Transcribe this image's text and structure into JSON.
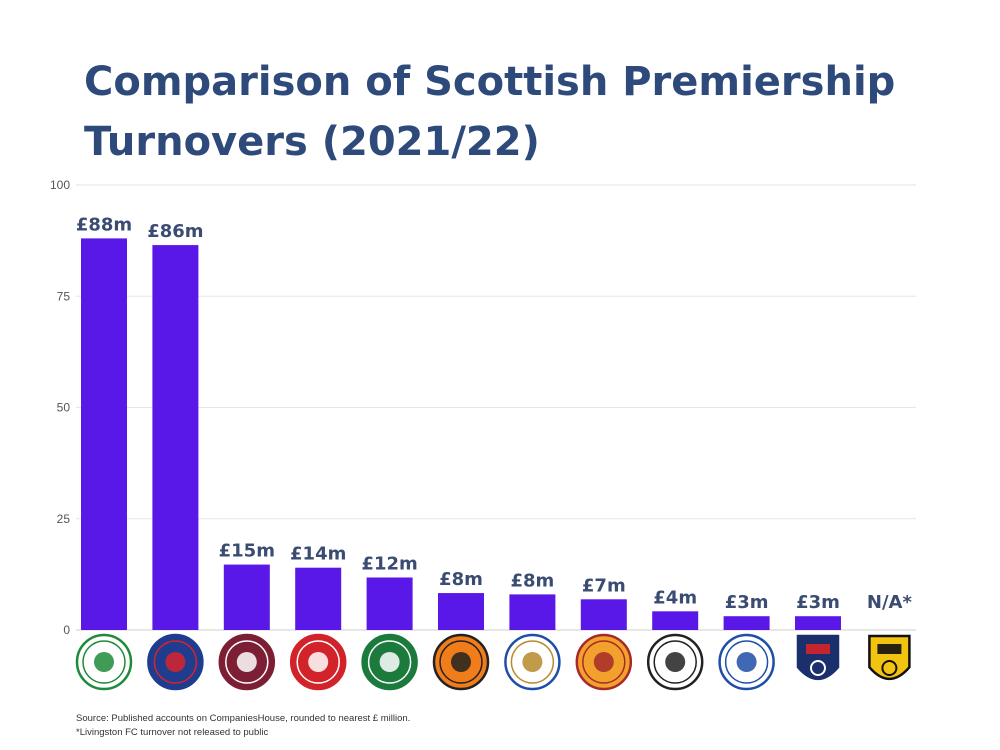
{
  "title_lines": [
    "Comparison of Scottish Premiership",
    "Turnovers (2021/22)"
  ],
  "colors": {
    "bar": "#5a18e8",
    "title": "#2e4a7a",
    "label": "#3a4c72",
    "grid": "#e6e6e6",
    "axis": "#555555"
  },
  "chart_data": {
    "type": "bar",
    "title": "Comparison of Scottish Premiership Turnovers (2021/22)",
    "categories": [
      "Celtic",
      "Rangers",
      "Hearts",
      "Aberdeen",
      "Hibernian",
      "Dundee United",
      "St Johnstone",
      "Motherwell",
      "St Mirren",
      "Kilmarnock",
      "Ross County",
      "Livingston"
    ],
    "values": [
      88,
      86.5,
      14.7,
      14,
      11.8,
      8.3,
      8,
      6.9,
      4.2,
      3.1,
      3.1,
      null
    ],
    "data_labels": [
      "£88m",
      "£86m",
      "£15m",
      "£14m",
      "£12m",
      "£8m",
      "£8m",
      "£7m",
      "£4m",
      "£3m",
      "£3m",
      "N/A*"
    ],
    "xlabel": "",
    "ylabel": "",
    "ylim": [
      0,
      100
    ],
    "yticks": [
      0,
      25,
      50,
      75,
      100
    ],
    "grid": true,
    "legend": "none",
    "x_tick_display": "club crest icons",
    "crests": [
      {
        "name": "celtic-crest-icon",
        "shape": "circle",
        "fill": "#ffffff",
        "stroke": "#1e8a3a",
        "accent": "#1e8a3a"
      },
      {
        "name": "rangers-crest-icon",
        "shape": "circle",
        "fill": "#1f3c8f",
        "stroke": "#1f3c8f",
        "accent": "#d8232a"
      },
      {
        "name": "hearts-crest-icon",
        "shape": "circle",
        "fill": "#7d1f34",
        "stroke": "#7d1f34",
        "accent": "#ffffff"
      },
      {
        "name": "aberdeen-crest-icon",
        "shape": "circle",
        "fill": "#d2232a",
        "stroke": "#d2232a",
        "accent": "#ffffff"
      },
      {
        "name": "hibernian-crest-icon",
        "shape": "circle",
        "fill": "#1b7a3c",
        "stroke": "#1b7a3c",
        "accent": "#ffffff"
      },
      {
        "name": "dundee-united-crest-icon",
        "shape": "circle",
        "fill": "#f07d1a",
        "stroke": "#222222",
        "accent": "#222222"
      },
      {
        "name": "st-johnstone-crest-icon",
        "shape": "circle",
        "fill": "#ffffff",
        "stroke": "#1f4ea8",
        "accent": "#b78a2a"
      },
      {
        "name": "motherwell-crest-icon",
        "shape": "circle",
        "fill": "#f2a22c",
        "stroke": "#a62a2a",
        "accent": "#a62a2a"
      },
      {
        "name": "st-mirren-crest-icon",
        "shape": "circle",
        "fill": "#ffffff",
        "stroke": "#222222",
        "accent": "#222222"
      },
      {
        "name": "kilmarnock-crest-icon",
        "shape": "circle",
        "fill": "#ffffff",
        "stroke": "#1f4ea8",
        "accent": "#1f4ea8"
      },
      {
        "name": "ross-county-crest-icon",
        "shape": "shield",
        "fill": "#1c2f6d",
        "stroke": "#1c2f6d",
        "accent": "#d8232a"
      },
      {
        "name": "livingston-crest-icon",
        "shape": "shield",
        "fill": "#f2c30f",
        "stroke": "#111111",
        "accent": "#111111"
      }
    ]
  },
  "footnotes": [
    "Source: Published accounts on CompaniesHouse, rounded to nearest £ million.",
    "*Livingston FC turnover not released to public"
  ]
}
